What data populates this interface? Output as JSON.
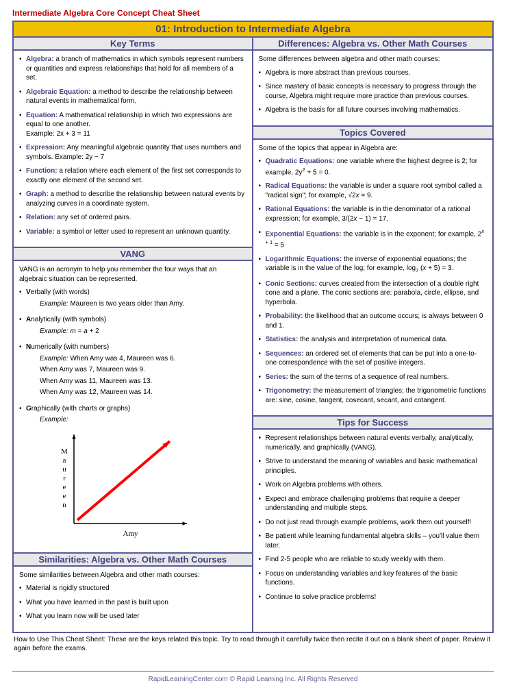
{
  "doc_title": "Intermediate Algebra Core Concept Cheat Sheet",
  "banner": "01: Introduction to Intermediate Algebra",
  "key_terms": {
    "header": "Key Terms",
    "items": [
      {
        "term": "Algebra:",
        "def": " a branch of mathematics in which symbols represent numbers or quantities and express relationships that hold for all members of a set."
      },
      {
        "term": "Algebraic Equation:",
        "def": " a method to describe the relationship between natural events in mathematical form."
      },
      {
        "term": "Equation:",
        "def": " A mathematical relationship in which two expressions are equal to one another.",
        "extra": "Example: 2x + 3 = 11"
      },
      {
        "term": "Expression:",
        "def": " Any meaningful algebraic quantity that uses numbers and symbols. Example: 2y − 7"
      },
      {
        "term": "Function:",
        "def": " a relation where each element of the first set corresponds to exactly one element of the second set."
      },
      {
        "term": "Graph:",
        "def": " a method to describe the relationship between natural events by analyzing curves in a coordinate system."
      },
      {
        "term": "Relation:",
        "def": " any set of ordered pairs."
      },
      {
        "term": "Variable:",
        "def": " a symbol or letter used to represent an unknown quantity."
      }
    ]
  },
  "vang": {
    "header": "VANG",
    "intro": "VANG is an acronym to help you remember the four ways that an algebraic situation can be represented.",
    "v": {
      "label_bold": "V",
      "label_rest": "erbally (with words)",
      "ex_label": "Example:",
      "ex": " Maureen is two years older than Amy."
    },
    "a": {
      "label_bold": "A",
      "label_rest": "nalytically (with symbols)",
      "ex_label": "Example:",
      "ex_html": " m = a + 2"
    },
    "n": {
      "label_bold": "N",
      "label_rest": "umerically (with numbers)",
      "ex_label": "Example:",
      "lines": [
        " When Amy was 4, Maureen was 6.",
        "When Amy was 7, Maureen was 9.",
        "When Amy was 11, Maureen was 13.",
        "When Amy was 12, Maureen was 14."
      ]
    },
    "g": {
      "label_bold": "G",
      "label_rest": "raphically (with charts or graphs)",
      "ex_label": "Example:"
    },
    "chart": {
      "y_label_letters": [
        "M",
        "a",
        "u",
        "r",
        "e",
        "e",
        "n"
      ],
      "x_label": "Amy",
      "axis_color": "#000000",
      "line_color": "#ff0000",
      "line_width": 4
    }
  },
  "similarities": {
    "header": "Similarities: Algebra vs. Other Math Courses",
    "intro": "Some similarities between Algebra and other math courses:",
    "items": [
      "Material is rigidly structured",
      "What you have learned in the past is built upon",
      "What you learn now will be used later"
    ]
  },
  "differences": {
    "header": "Differences: Algebra vs. Other Math Courses",
    "intro": "Some differences between algebra and other math courses:",
    "items": [
      "Algebra is more abstract than previous courses.",
      "Since mastery of basic concepts is necessary to progress through the course, Algebra might require more practice than previous courses.",
      "Algebra is the basis for all future courses involving mathematics."
    ]
  },
  "topics": {
    "header": "Topics Covered",
    "intro": "Some of the topics that appear in Algebra are:",
    "items": [
      {
        "term": "Quadratic Equations:",
        "html": " one variable where the highest degree is 2; for example, 2y<sup>2</sup> + 5 = 0."
      },
      {
        "term": "Radical Equations:",
        "html": " the variable is under a square root symbol called a \"radical sign\"; for example, √2<em>x</em> = 9."
      },
      {
        "term": "Rational Equations:",
        "html": " the variable is in the denominator of a rational expression; for example, 3/(2<em>x</em> − 1) = 17."
      },
      {
        "term": "Exponential Equations:",
        "html": " the variable is in the exponent; for example, 2<sup><em>x</em> + 1</sup> = 5"
      },
      {
        "term": "Logarithmic Equations:",
        "html": " the inverse of exponential equations; the variable is in the value of the log; for example, log<sub>7</sub> (<em>x</em> + 5) = 3."
      },
      {
        "term": "Conic Sections:",
        "html": " curves created from the intersection of a double right cone and a plane. The conic sections are: parabola, circle, ellipse, and hyperbola."
      },
      {
        "term": "Probability:",
        "html": " the likelihood that an outcome occurs; is always between 0 and 1."
      },
      {
        "term": "Statistics:",
        "html": " the analysis and interpretation of numerical data."
      },
      {
        "term": "Sequences:",
        "html": " an ordered set of elements that can be put into a one-to-one correspondence with the set of positive integers."
      },
      {
        "term": "Series:",
        "html": " the sum of the terms of a sequence of real numbers."
      },
      {
        "term": "Trigonometry:",
        "html": " the measurement of triangles; the trigonometric functions are: sine, cosine, tangent, cosecant, secant, and cotangent."
      }
    ]
  },
  "tips": {
    "header": "Tips for Success",
    "items": [
      "Represent relationships between natural events verbally, analytically, numerically, and graphically (VANG).",
      "Strive to understand the meaning of variables and basic mathematical principles.",
      "Work on Algebra problems with others.",
      "Expect and embrace challenging problems that require a deeper understanding and multiple steps.",
      "Do not just read through example problems, work them out yourself!",
      "Be patient while learning fundamental algebra skills – you'll value them later.",
      "Find 2-5 people who are reliable to study weekly with them.",
      "Focus on understanding variables and key features of the basic functions.",
      "Continue to solve practice problems!"
    ]
  },
  "how_to": "How to Use This Cheat Sheet: These are the keys related this topic. Try to read through it carefully twice then recite it out on a blank sheet of paper. Review it again before the exams.",
  "footer": "RapidLearningCenter.com    © Rapid Learning Inc. All Rights Reserved"
}
